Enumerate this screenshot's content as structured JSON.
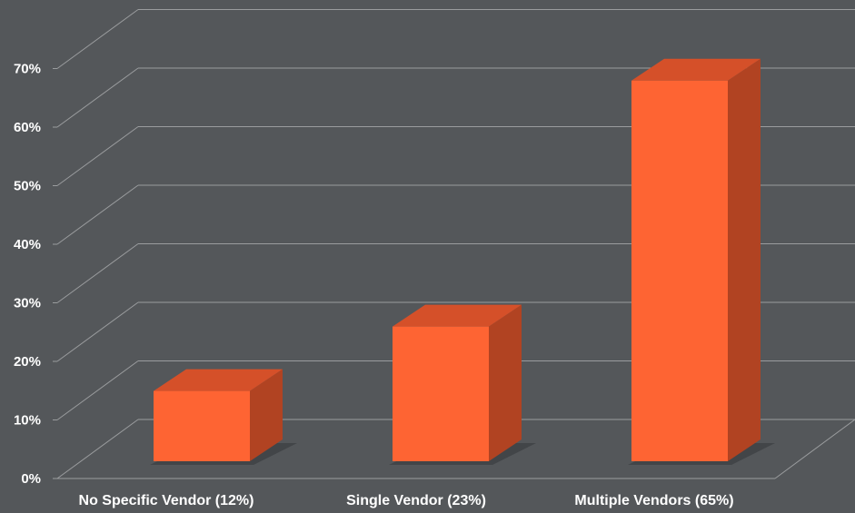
{
  "colors": {
    "background": "#54575a",
    "gridline": "#9a9c9e",
    "bar_front": "#fe6433",
    "bar_top": "#d55029",
    "bar_side": "#b14322",
    "bar_shadow": "#3b3d40",
    "text": "#ffffff"
  },
  "chart_data": {
    "type": "bar",
    "style": "3d",
    "categories": [
      "No Specific Vendor (12%)",
      "Single Vendor (23%)",
      "Multiple Vendors (65%)"
    ],
    "values": [
      12,
      23,
      65
    ],
    "ylim": [
      0,
      70
    ],
    "yticks": [
      0,
      10,
      20,
      30,
      40,
      50,
      60,
      70
    ],
    "ytick_labels": [
      "0%",
      "10%",
      "20%",
      "30%",
      "40%",
      "50%",
      "60%",
      "70%"
    ],
    "grid": true,
    "legend": "none"
  }
}
